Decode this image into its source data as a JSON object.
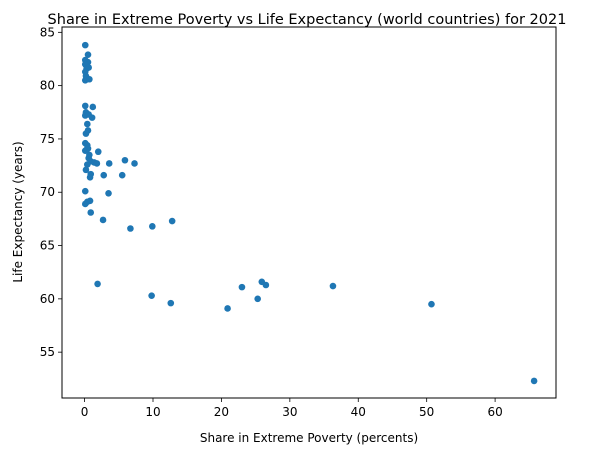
{
  "chart_data": {
    "type": "scatter",
    "title": "Share in Extreme Poverty vs Life Expectancy (world countries) for 2021",
    "xlabel": "Share in Extreme Poverty (percents)",
    "ylabel": "Life Expectancy (years)",
    "xlim": [
      -3.3,
      68.9
    ],
    "ylim": [
      50.7,
      85.5
    ],
    "xticks": [
      0,
      10,
      20,
      30,
      40,
      50,
      60
    ],
    "yticks": [
      55,
      60,
      65,
      70,
      75,
      80,
      85
    ],
    "grid": false,
    "legend": "none",
    "marker_color": "#1f77b4",
    "points": [
      {
        "x": 0.1,
        "y": 83.8
      },
      {
        "x": 0.5,
        "y": 82.9
      },
      {
        "x": 0.1,
        "y": 82.4
      },
      {
        "x": 0.5,
        "y": 82.2
      },
      {
        "x": 0.1,
        "y": 82.0
      },
      {
        "x": 0.3,
        "y": 81.6
      },
      {
        "x": 0.6,
        "y": 81.7
      },
      {
        "x": 0.1,
        "y": 81.3
      },
      {
        "x": 0.2,
        "y": 80.9
      },
      {
        "x": 0.3,
        "y": 80.7
      },
      {
        "x": 0.1,
        "y": 80.5
      },
      {
        "x": 0.7,
        "y": 80.6
      },
      {
        "x": 0.1,
        "y": 78.1
      },
      {
        "x": 1.2,
        "y": 78.0
      },
      {
        "x": 0.2,
        "y": 77.5
      },
      {
        "x": 0.1,
        "y": 77.2
      },
      {
        "x": 0.6,
        "y": 77.3
      },
      {
        "x": 1.1,
        "y": 77.0
      },
      {
        "x": 0.4,
        "y": 76.4
      },
      {
        "x": 0.5,
        "y": 75.8
      },
      {
        "x": 0.2,
        "y": 75.5
      },
      {
        "x": 0.1,
        "y": 74.6
      },
      {
        "x": 0.4,
        "y": 74.4
      },
      {
        "x": 0.3,
        "y": 74.0
      },
      {
        "x": 0.5,
        "y": 74.1
      },
      {
        "x": 0.1,
        "y": 73.9
      },
      {
        "x": 2.0,
        "y": 73.8
      },
      {
        "x": 0.7,
        "y": 73.5
      },
      {
        "x": 0.6,
        "y": 73.2
      },
      {
        "x": 0.9,
        "y": 72.9
      },
      {
        "x": 1.4,
        "y": 72.8
      },
      {
        "x": 0.4,
        "y": 72.6
      },
      {
        "x": 1.8,
        "y": 72.7
      },
      {
        "x": 5.9,
        "y": 73.0
      },
      {
        "x": 3.6,
        "y": 72.7
      },
      {
        "x": 7.3,
        "y": 72.7
      },
      {
        "x": 0.2,
        "y": 72.1
      },
      {
        "x": 0.9,
        "y": 71.7
      },
      {
        "x": 0.8,
        "y": 71.4
      },
      {
        "x": 2.8,
        "y": 71.6
      },
      {
        "x": 5.5,
        "y": 71.6
      },
      {
        "x": 0.1,
        "y": 70.1
      },
      {
        "x": 3.5,
        "y": 69.9
      },
      {
        "x": 0.8,
        "y": 69.2
      },
      {
        "x": 0.4,
        "y": 69.1
      },
      {
        "x": 0.1,
        "y": 68.9
      },
      {
        "x": 0.9,
        "y": 68.1
      },
      {
        "x": 2.7,
        "y": 67.4
      },
      {
        "x": 12.8,
        "y": 67.3
      },
      {
        "x": 9.9,
        "y": 66.8
      },
      {
        "x": 6.7,
        "y": 66.6
      },
      {
        "x": 1.9,
        "y": 61.4
      },
      {
        "x": 25.9,
        "y": 61.6
      },
      {
        "x": 26.5,
        "y": 61.3
      },
      {
        "x": 36.3,
        "y": 61.2
      },
      {
        "x": 23.0,
        "y": 61.1
      },
      {
        "x": 9.8,
        "y": 60.3
      },
      {
        "x": 25.3,
        "y": 60.0
      },
      {
        "x": 12.6,
        "y": 59.6
      },
      {
        "x": 50.7,
        "y": 59.5
      },
      {
        "x": 20.9,
        "y": 59.1
      },
      {
        "x": 65.7,
        "y": 52.3
      }
    ]
  }
}
